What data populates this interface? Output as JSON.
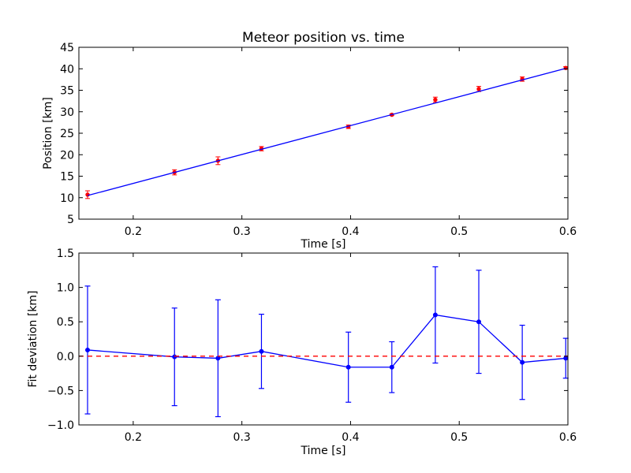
{
  "chart_data": [
    {
      "type": "scatter",
      "title": "Meteor position vs. time",
      "xlabel": "Time [s]",
      "ylabel": "Position [km]",
      "xlim": [
        0.15,
        0.6
      ],
      "ylim": [
        5,
        45
      ],
      "xticks": [
        0.2,
        0.3,
        0.4,
        0.5,
        0.6
      ],
      "xtick_labels": [
        "0.2",
        "0.3",
        "0.4",
        "0.5",
        "0.6"
      ],
      "yticks": [
        5,
        10,
        15,
        20,
        25,
        30,
        35,
        40,
        45
      ],
      "ytick_labels": [
        "5",
        "10",
        "15",
        "20",
        "25",
        "30",
        "35",
        "40",
        "45"
      ],
      "series": [
        {
          "kind": "errorbar-points",
          "color": "#ff0000",
          "x": [
            0.158,
            0.238,
            0.278,
            0.318,
            0.398,
            0.438,
            0.478,
            0.518,
            0.558,
            0.598
          ],
          "y": [
            10.7,
            15.9,
            18.6,
            21.4,
            26.5,
            29.3,
            32.8,
            35.3,
            37.6,
            40.2
          ],
          "yerr": [
            0.9,
            0.6,
            0.9,
            0.5,
            0.4,
            0.2,
            0.6,
            0.6,
            0.5,
            0.3
          ]
        },
        {
          "kind": "fit-line",
          "color": "#0000ff",
          "x": [
            0.158,
            0.598
          ],
          "y": [
            10.5,
            40.1
          ]
        }
      ],
      "grid": false
    },
    {
      "type": "line",
      "xlabel": "Time [s]",
      "ylabel": "Fit deviation [km]",
      "xlim": [
        0.15,
        0.6
      ],
      "ylim": [
        -1.0,
        1.5
      ],
      "xticks": [
        0.2,
        0.3,
        0.4,
        0.5,
        0.6
      ],
      "xtick_labels": [
        "0.2",
        "0.3",
        "0.4",
        "0.5",
        "0.6"
      ],
      "yticks": [
        -1.0,
        -0.5,
        0.0,
        0.5,
        1.0,
        1.5
      ],
      "ytick_labels": [
        "−1.0",
        "−0.5",
        "0.0",
        "0.5",
        "1.0",
        "1.5"
      ],
      "series": [
        {
          "kind": "errorbar-line",
          "color": "#0000ff",
          "x": [
            0.158,
            0.238,
            0.278,
            0.318,
            0.398,
            0.438,
            0.478,
            0.518,
            0.558,
            0.598
          ],
          "y": [
            0.09,
            -0.01,
            -0.03,
            0.07,
            -0.16,
            -0.16,
            0.6,
            0.5,
            -0.09,
            -0.03
          ],
          "yerr": [
            0.93,
            0.71,
            0.85,
            0.54,
            0.51,
            0.37,
            0.7,
            0.75,
            0.54,
            0.29
          ]
        },
        {
          "kind": "reference-line",
          "color": "#ff0000",
          "style": "dashed",
          "y": 0.0
        }
      ],
      "grid": false
    }
  ]
}
